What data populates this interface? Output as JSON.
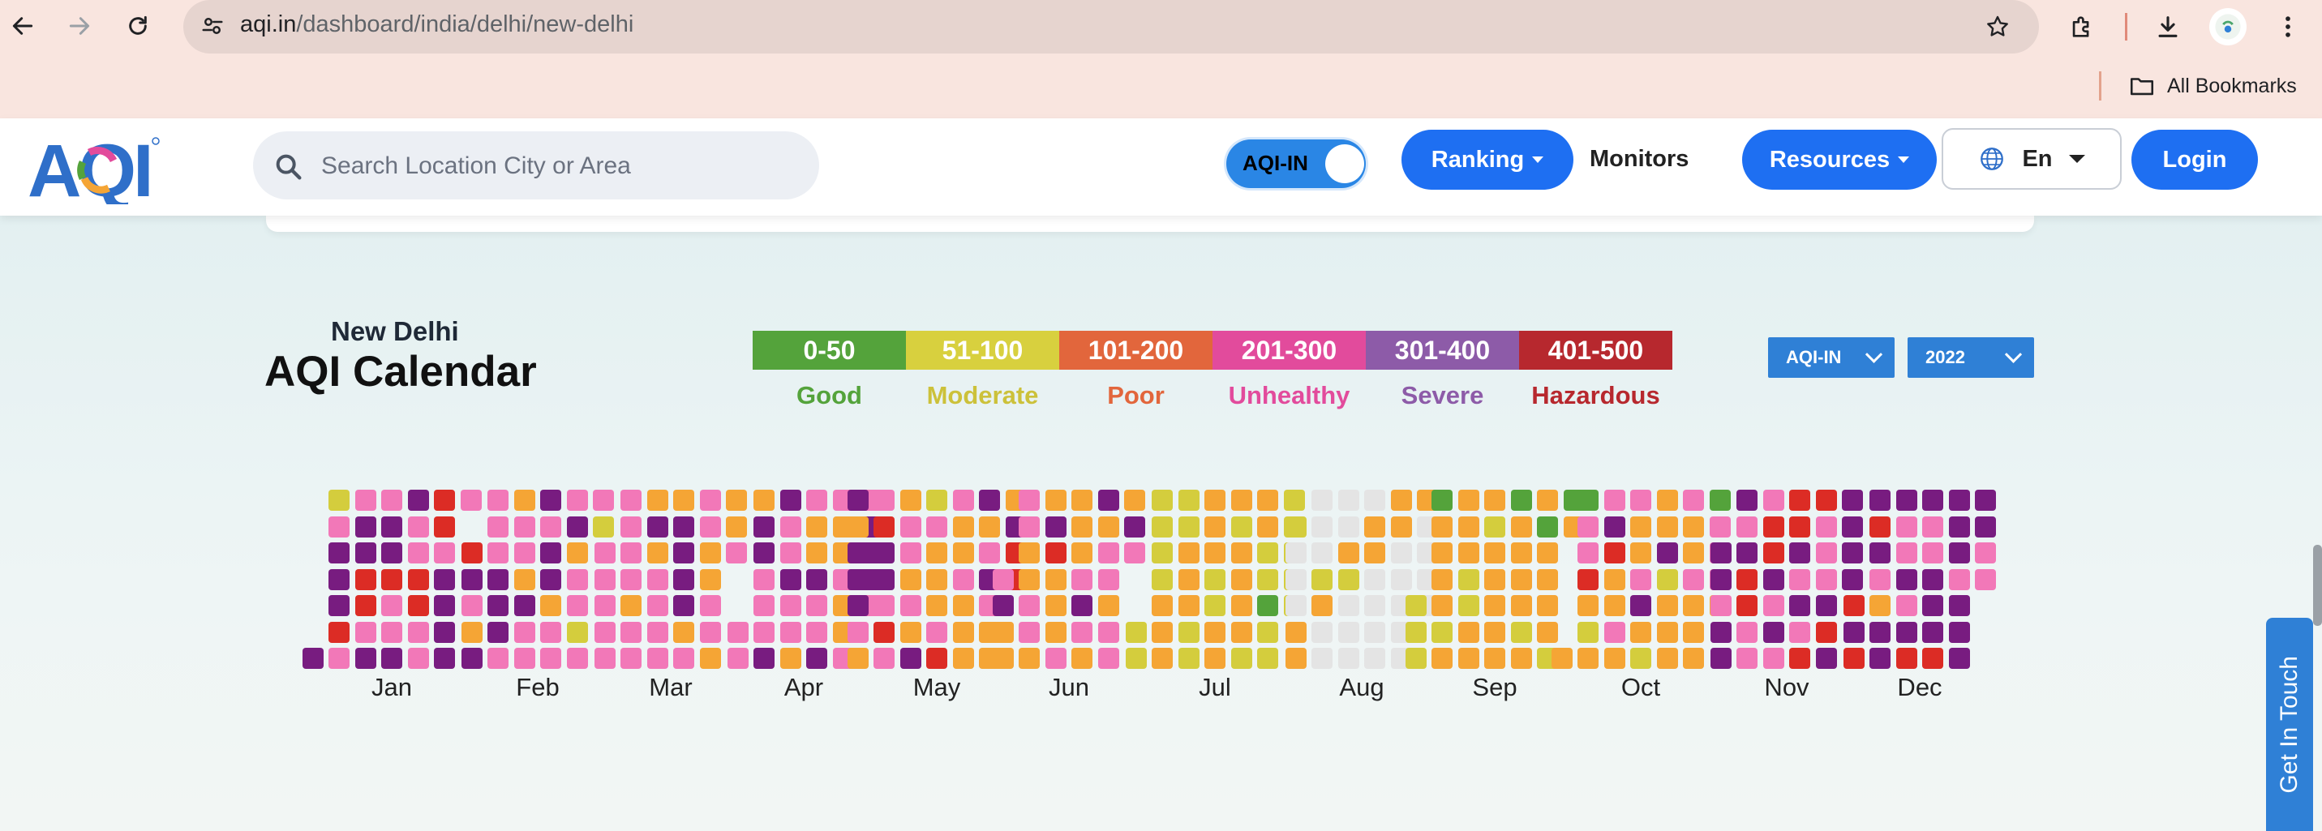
{
  "browser": {
    "url_host": "aqi.in",
    "url_path": "/dashboard/india/delhi/new-delhi",
    "bookmarks_label": "All Bookmarks"
  },
  "header": {
    "search_placeholder": "Search Location City or Area",
    "toggle_label": "AQI-IN",
    "ranking_label": "Ranking",
    "monitors_label": "Monitors",
    "resources_label": "Resources",
    "language_label": "En",
    "login_label": "Login"
  },
  "calendar": {
    "city": "New Delhi",
    "title": "AQI Calendar",
    "index_select": "AQI-IN",
    "year_select": "2022",
    "legend": [
      {
        "range": "0-50",
        "label": "Good",
        "color": "#54a33b",
        "text_color": "#54a33b"
      },
      {
        "range": "51-100",
        "label": "Moderate",
        "color": "#d8d03e",
        "text_color": "#ccc13a"
      },
      {
        "range": "101-200",
        "label": "Poor",
        "color": "#e2663c",
        "text_color": "#e2663c"
      },
      {
        "range": "201-300",
        "label": "Unhealthy",
        "color": "#e24b9c",
        "text_color": "#e24b9c"
      },
      {
        "range": "301-400",
        "label": "Severe",
        "color": "#8d5ba8",
        "text_color": "#8d5ba8"
      },
      {
        "range": "401-500",
        "label": "Hazardous",
        "color": "#b7282e",
        "text_color": "#b7282e"
      }
    ],
    "cell_colors": {
      "G": "#54a33b",
      "M": "#d4cd3d",
      "O": "#f5a535",
      "K": "#f278b8",
      "P": "#781c80",
      "R": "#dc2c25",
      "E": "#e4e4e4"
    },
    "months": [
      {
        "label": "Jan",
        "first_weekday": 6,
        "days": "PMKPPPRKKPPRRKPKPPRKKPPKKRRKKRRKPPPPK"
      },
      {
        "label": "Feb",
        "first_weekday": 2,
        "days": "RPKOPKKKPPPKOKKOPKKPKPPOKKKPOKKMKKM"
      },
      {
        "label": "Mar",
        "first_weekday": 2,
        "days": "KKKKKKKKKOKKOPOKKKKOPPPPOKKKOOKKOOOK"
      },
      {
        "label": "Apr",
        "first_weekday": 5,
        "days": "KKOPPKKKPPKKPKKOKOOPKKPKOOKOOKKPPPK"
      },
      {
        "label": "May",
        "first_weekday": 0,
        "days": "POPPPKOKRPPKRKOKKOKOPMKOOOKRKOOKOOOPOKPKOOOPRR"
      },
      {
        "label": "Jun",
        "first_weekday": 3,
        "days": "KPOOKKOOKKOOPROOOKOOOKPKOPOKKOKKOPK"
      },
      {
        "label": "Jul",
        "first_weekday": 5,
        "days": "MMMMMMOOOMMOOOMMOOOMMOOOMOOOOMOOMMGMMMMMMM"
      },
      {
        "label": "Aug",
        "first_weekday": 1,
        "days": "MEEEOOEEEMOEEEEOMEEEEOOEEEEOOEEEEEOEEEE"
      },
      {
        "label": "Sep",
        "first_weekday": 4,
        "days": "MMMGOOOOMOOOOMMOOOMOOOOOGOOOOMOOGOOOOMGO"
      },
      {
        "label": "Oct",
        "first_weekday": 6,
        "days": "OGKKROMOKPROOKOKOOKPOMOOPMOOOKOOKOOOGKKKO"
      },
      {
        "label": "Nov",
        "first_weekday": 2,
        "days": "PPKPPPKPRRKKKRRPKPKRRPKPKRRKKKPRPPPPP"
      },
      {
        "label": "Dec",
        "first_weekday": 4,
        "days": "RPRPRPKOPPPKKPKPRPKKPPPRPPPKPPPPPKK"
      }
    ]
  },
  "get_in_touch_label": "Get In Touch"
}
